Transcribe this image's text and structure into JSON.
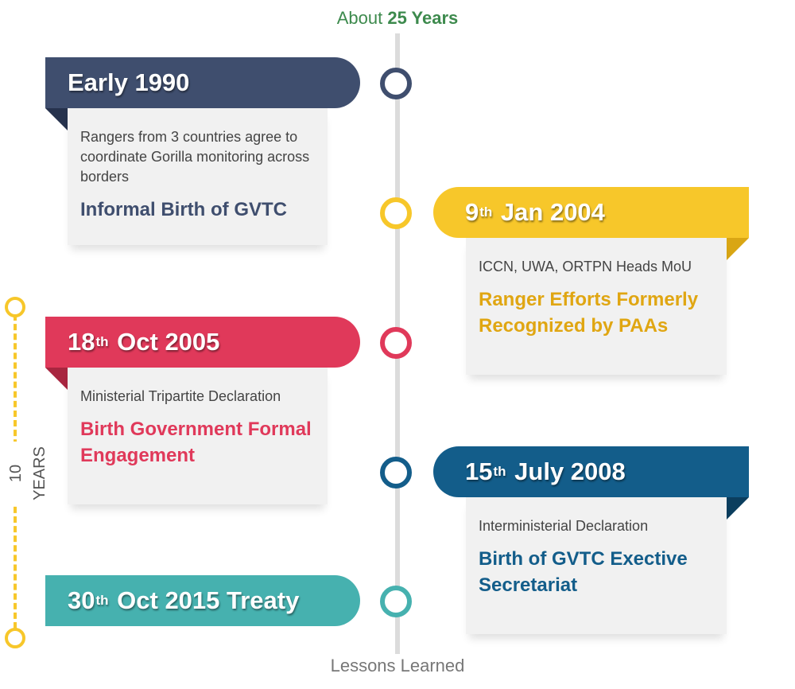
{
  "header": {
    "prefix": "About",
    "highlight": "25 Years"
  },
  "footer": {
    "label": "Lessons Learned"
  },
  "period": {
    "label": "10 YEARS"
  },
  "colors": {
    "navy": "#3f4e6e",
    "yellow": "#f7c72a",
    "red": "#e0395a",
    "blue": "#135d8a",
    "teal": "#46b1af",
    "green": "#3d8a4d",
    "headline_yellow": "#e0a612"
  },
  "events": [
    {
      "date": "Early 1990",
      "description": "Rangers from 3 countries agree to coordinate Gorilla monitoring across borders",
      "headline": "Informal Birth of GVTC"
    },
    {
      "date_day": "9",
      "date_suffix": "th",
      "date_rest": "Jan 2004",
      "description": "ICCN, UWA, ORTPN Heads MoU",
      "headline": "Ranger Efforts Formerly Recognized by PAAs"
    },
    {
      "date_day": "18",
      "date_suffix": "th",
      "date_rest": "Oct 2005",
      "description": "Ministerial Tripartite Declaration",
      "headline": "Birth Government Formal Engagement"
    },
    {
      "date_day": "15",
      "date_suffix": "th",
      "date_rest": "July 2008",
      "description": "Interministerial Declaration",
      "headline": "Birth of GVTC Exective Secretariat"
    },
    {
      "date_day": "30",
      "date_suffix": "th",
      "date_rest": "Oct 2015 Treaty"
    }
  ]
}
